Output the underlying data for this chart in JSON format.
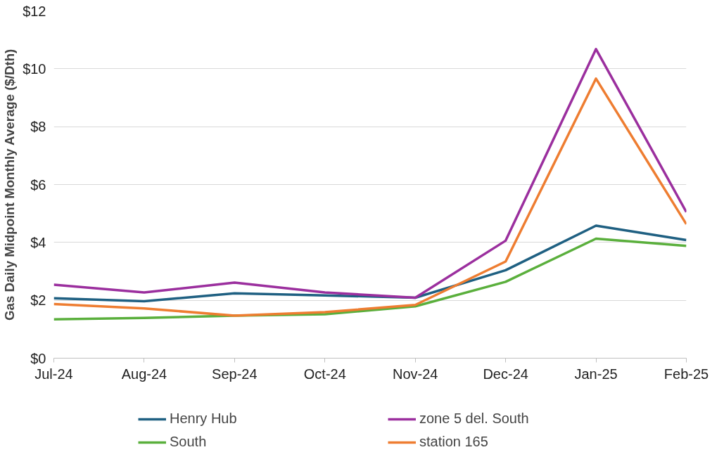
{
  "chart_data": {
    "type": "line",
    "ylabel": "Gas Daily Midpoint Monthly Average ($/Dth)",
    "categories": [
      "Jul-24",
      "Aug-24",
      "Sep-24",
      "Oct-24",
      "Nov-24",
      "Dec-24",
      "Jan-25",
      "Feb-25"
    ],
    "series": [
      {
        "name": "Henry Hub",
        "color": "#1f6082",
        "values": [
          2.07,
          1.97,
          2.24,
          2.17,
          2.09,
          3.04,
          4.58,
          4.08
        ]
      },
      {
        "name": "zone 5 del. South",
        "color": "#9b2f9e",
        "values": [
          2.54,
          2.27,
          2.61,
          2.27,
          2.09,
          4.06,
          10.68,
          5.05
        ]
      },
      {
        "name": "South",
        "color": "#5aaf3c",
        "values": [
          1.34,
          1.39,
          1.47,
          1.52,
          1.79,
          2.64,
          4.13,
          3.88
        ]
      },
      {
        "name": "station 165",
        "color": "#ee7d31",
        "values": [
          1.87,
          1.72,
          1.47,
          1.59,
          1.84,
          3.34,
          9.66,
          4.63
        ]
      }
    ],
    "ylim": [
      0,
      12
    ],
    "yticks": [
      {
        "value": 0,
        "label": "$0"
      },
      {
        "value": 2,
        "label": "$2"
      },
      {
        "value": 4,
        "label": "$4"
      },
      {
        "value": 6,
        "label": "$6"
      },
      {
        "value": 8,
        "label": "$8"
      },
      {
        "value": 10,
        "label": "$10"
      },
      {
        "value": 12,
        "label": "$12"
      }
    ],
    "grid": "y",
    "legend": "bottom",
    "marker": "none",
    "line_style": "solid"
  }
}
